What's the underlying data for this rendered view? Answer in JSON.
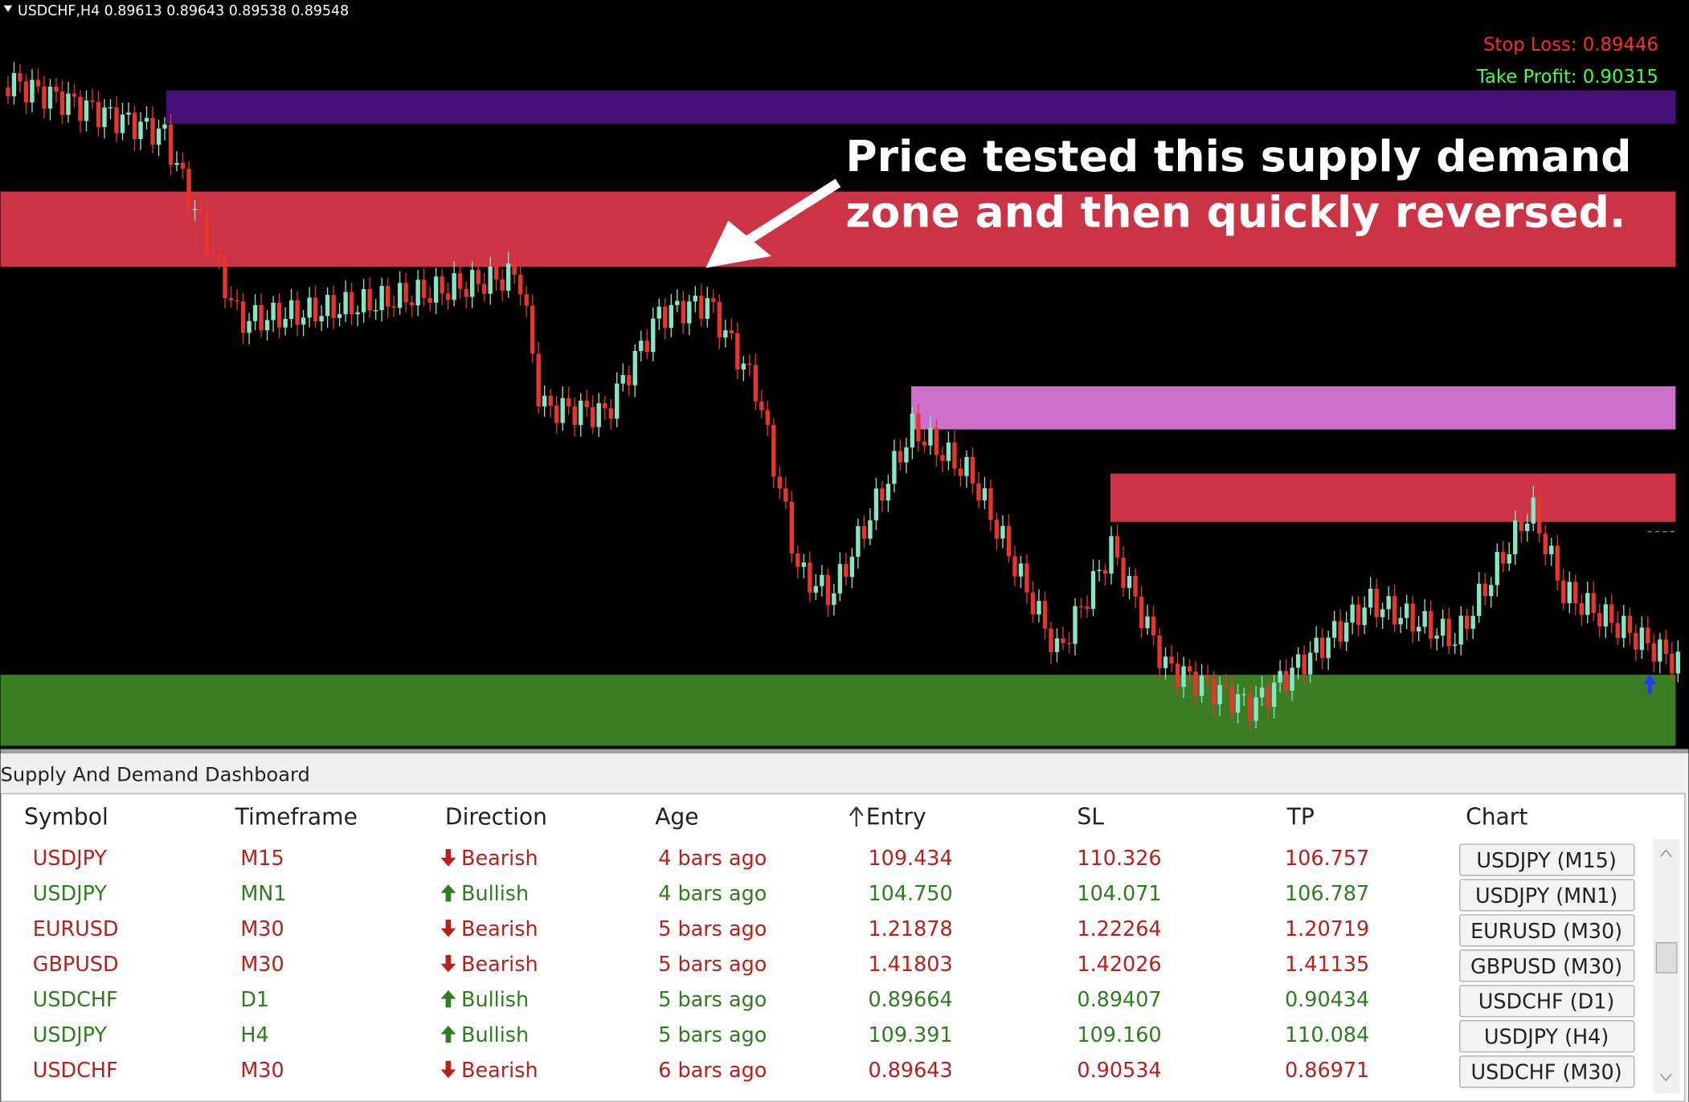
{
  "header": {
    "symbol_info": "USDCHF,H4  0.89613 0.89643 0.89538 0.89548",
    "stop_loss": "Stop Loss: 0.89446",
    "take_profit": "Take Profit: 0.90315"
  },
  "annotation": [
    "Price tested this supply demand",
    "zone and then quickly reversed."
  ],
  "dashboard": {
    "title": "Supply And Demand Dashboard",
    "columns": [
      "Symbol",
      "Timeframe",
      "Direction",
      "Age",
      "Entry",
      "SL",
      "TP",
      "Chart"
    ],
    "rows": [
      {
        "symbol": "USDJPY",
        "timeframe": "M15",
        "direction": "Bearish",
        "age": "4 bars ago",
        "entry": "109.434",
        "sl": "110.326",
        "tp": "106.757",
        "chart": "USDJPY (M15)",
        "color": "#b8211b",
        "arrow": "down"
      },
      {
        "symbol": "USDJPY",
        "timeframe": "MN1",
        "direction": "Bullish",
        "age": "4 bars ago",
        "entry": "104.750",
        "sl": "104.071",
        "tp": "106.787",
        "chart": "USDJPY (MN1)",
        "color": "#2e7d1e",
        "arrow": "up"
      },
      {
        "symbol": "EURUSD",
        "timeframe": "M30",
        "direction": "Bearish",
        "age": "5 bars ago",
        "entry": "1.21878",
        "sl": "1.22264",
        "tp": "1.20719",
        "chart": "EURUSD (M30)",
        "color": "#b8211b",
        "arrow": "down"
      },
      {
        "symbol": "GBPUSD",
        "timeframe": "M30",
        "direction": "Bearish",
        "age": "5 bars ago",
        "entry": "1.41803",
        "sl": "1.42026",
        "tp": "1.41135",
        "chart": "GBPUSD (M30)",
        "color": "#b8211b",
        "arrow": "down"
      },
      {
        "symbol": "USDCHF",
        "timeframe": "D1",
        "direction": "Bullish",
        "age": "5 bars ago",
        "entry": "0.89664",
        "sl": "0.89407",
        "tp": "0.90434",
        "chart": "USDCHF (D1)",
        "color": "#2e7d1e",
        "arrow": "up"
      },
      {
        "symbol": "USDJPY",
        "timeframe": "H4",
        "direction": "Bullish",
        "age": "5 bars ago",
        "entry": "109.391",
        "sl": "109.160",
        "tp": "110.084",
        "chart": "USDJPY (H4)",
        "color": "#2e7d1e",
        "arrow": "up"
      },
      {
        "symbol": "USDCHF",
        "timeframe": "M30",
        "direction": "Bearish",
        "age": "6 bars ago",
        "entry": "0.89643",
        "sl": "0.90534",
        "tp": "0.86971",
        "chart": "USDCHF (M30)",
        "color": "#b8211b",
        "arrow": "down"
      }
    ]
  }
}
